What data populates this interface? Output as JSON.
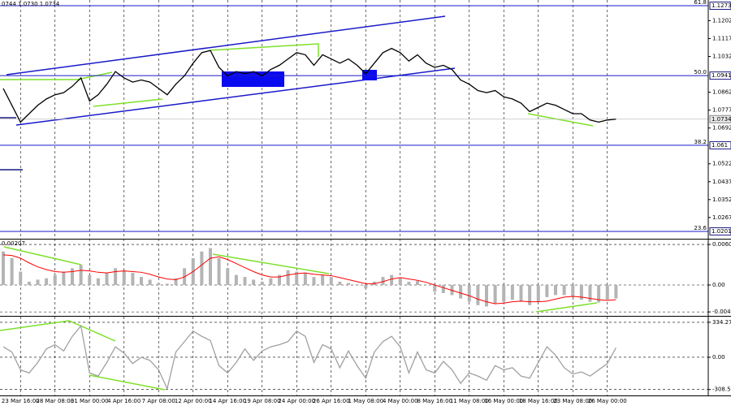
{
  "chart_data": [
    {
      "type": "price",
      "header": "0744 1.0730 1.0734",
      "categories": [
        null,
        null,
        "23 Mar 16:00",
        null,
        null,
        null,
        "28 Mar 08:00",
        null,
        null,
        null,
        "31 Mar 00:00",
        null,
        null,
        null,
        "4 Apr 16:00",
        null,
        null,
        null,
        "7 Apr 08:00",
        null,
        null,
        null,
        "12 Apr 00:00",
        null,
        null,
        null,
        "14 Apr 16:00",
        null,
        null,
        null,
        "19 Apr 08:00",
        null,
        null,
        null,
        "24 Apr 00:00",
        null,
        null,
        null,
        "26 Apr 16:00",
        null,
        null,
        null,
        "1 May 08:00",
        null,
        null,
        null,
        "4 May 00:00",
        null,
        null,
        null,
        "8 May 16:00",
        null,
        null,
        null,
        "11 May 08:00",
        null,
        null,
        null,
        "16 May 00:00",
        null,
        null,
        null,
        "18 May 16:00",
        null,
        null,
        null,
        "23 May 08:00",
        null,
        null,
        null,
        "26 May 00:00",
        null
      ],
      "series": [
        {
          "color": "#000000",
          "values": [
            1.088,
            1.08,
            1.072,
            1.076,
            1.08,
            1.083,
            1.085,
            1.086,
            1.089,
            1.093,
            1.082,
            1.085,
            1.09,
            1.096,
            1.093,
            1.091,
            1.092,
            1.091,
            1.088,
            1.085,
            1.09,
            1.094,
            1.1,
            1.105,
            1.106,
            1.098,
            1.094,
            1.096,
            1.095,
            1.096,
            1.094,
            1.097,
            1.099,
            1.102,
            1.105,
            1.104,
            1.099,
            1.104,
            1.102,
            1.1,
            1.102,
            1.099,
            1.095,
            1.1,
            1.105,
            1.107,
            1.105,
            1.101,
            1.104,
            1.1,
            1.098,
            1.099,
            1.097,
            1.092,
            1.09,
            1.087,
            1.086,
            1.087,
            1.084,
            1.083,
            1.081,
            1.077,
            1.079,
            1.081,
            1.08,
            1.078,
            1.076,
            1.076,
            1.073,
            1.072,
            1.073,
            1.0734
          ]
        }
      ],
      "ylim": [
        1.017,
        1.13
      ],
      "yticks": [
        1.1202,
        1.1117,
        1.1032,
        1.0862,
        1.0777,
        1.0692,
        1.0522,
        1.0437,
        1.0352,
        1.0267
      ],
      "fib_levels": [
        {
          "price": 1.1273,
          "ratio": "61.8"
        },
        {
          "price": 1.0941,
          "ratio": "50.0"
        },
        {
          "price": 1.061,
          "ratio": "38.2"
        },
        {
          "price": 1.0201,
          "ratio": "23.6"
        }
      ],
      "last_price": 1.0734
    },
    {
      "type": "macd",
      "header": "0.00207",
      "series": [
        {
          "color": "#b4b4b4",
          "values": [
            0.005,
            0.004,
            0.002,
            0.0005,
            0.0008,
            0.001,
            0.0015,
            0.002,
            0.0025,
            0.003,
            0.0015,
            0.001,
            0.0018,
            0.0025,
            0.0022,
            0.0018,
            0.0012,
            0.0008,
            0.0003,
            0.0002,
            0.001,
            0.0025,
            0.004,
            0.005,
            0.0055,
            0.004,
            0.0025,
            0.0015,
            0.0012,
            0.0008,
            0.0005,
            0.001,
            0.0015,
            0.0022,
            0.002,
            0.0018,
            0.0012,
            0.0015,
            0.0012,
            0.0005,
            0.0003,
            0.0001,
            -0.0005,
            0.0005,
            0.0012,
            0.0015,
            0.001,
            0.0005,
            0.0006,
            0.0,
            -0.001,
            -0.0012,
            -0.0015,
            -0.002,
            -0.0025,
            -0.003,
            -0.0032,
            -0.0028,
            -0.0025,
            -0.0022,
            -0.0025,
            -0.003,
            -0.0025,
            -0.0018,
            -0.0015,
            -0.0015,
            -0.0018,
            -0.0022,
            -0.0025,
            -0.0026,
            -0.0022,
            -0.002
          ]
        },
        {
          "color": "#ff0000",
          "values": [
            0.0045,
            0.0044,
            0.004,
            0.0033,
            0.0027,
            0.0023,
            0.002,
            0.0019,
            0.002,
            0.0022,
            0.0021,
            0.0019,
            0.0018,
            0.002,
            0.0021,
            0.002,
            0.0019,
            0.0016,
            0.0012,
            0.0009,
            0.0008,
            0.0012,
            0.002,
            0.003,
            0.004,
            0.0042,
            0.0038,
            0.0032,
            0.0026,
            0.002,
            0.0015,
            0.0012,
            0.0012,
            0.0015,
            0.0017,
            0.0018,
            0.0016,
            0.0015,
            0.0014,
            0.0011,
            0.0008,
            0.0005,
            0.0002,
            0.0002,
            0.0005,
            0.0009,
            0.0011,
            0.0009,
            0.0007,
            0.0004,
            0.0,
            -0.0004,
            -0.0008,
            -0.0012,
            -0.0016,
            -0.0021,
            -0.0025,
            -0.0028,
            -0.0027,
            -0.0025,
            -0.0024,
            -0.0025,
            -0.0025,
            -0.0024,
            -0.0021,
            -0.0018,
            -0.0017,
            -0.0018,
            -0.002,
            -0.0022,
            -0.0023,
            -0.0022
          ]
        }
      ],
      "ylim": [
        -0.00448,
        0.00666
      ],
      "yticks": [
        0.00605,
        {
          "value": 0,
          "label": "0.00"
        },
        -0.00401
      ]
    },
    {
      "type": "cci",
      "series": [
        {
          "color": "#a0a0a0",
          "values": [
            100,
            50,
            -120,
            -150,
            -50,
            80,
            120,
            60,
            200,
            300,
            -150,
            -180,
            -50,
            100,
            40,
            -60,
            0,
            -30,
            -120,
            -300,
            50,
            150,
            250,
            200,
            160,
            -80,
            -150,
            -50,
            80,
            -30,
            60,
            100,
            120,
            150,
            250,
            200,
            -50,
            120,
            80,
            -100,
            60,
            -80,
            -200,
            50,
            150,
            200,
            100,
            -150,
            50,
            -120,
            -150,
            -40,
            -120,
            -250,
            -150,
            -180,
            -220,
            -80,
            -120,
            -100,
            -180,
            -200,
            -50,
            100,
            20,
            -100,
            -160,
            -140,
            -180,
            -120,
            -60,
            90
          ]
        }
      ],
      "ylim": [
        -365,
        380
      ],
      "yticks": [
        334.2711,
        {
          "value": 0,
          "label": "0.00"
        },
        -308.568
      ]
    }
  ]
}
